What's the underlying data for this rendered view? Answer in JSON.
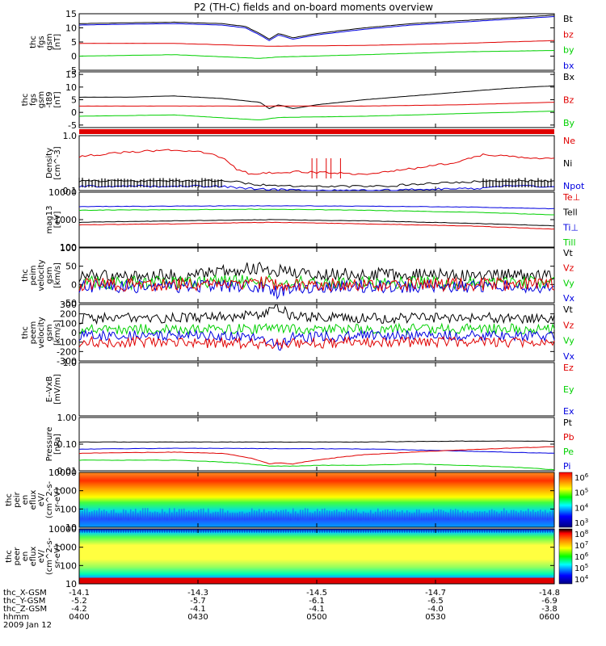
{
  "title": "P2 (TH-C) fields and on-board moments overview",
  "colors": {
    "black": "#000000",
    "red": "#e00000",
    "green": "#00d000",
    "blue": "#0000e0",
    "cyan": "#00cccc"
  },
  "chart_data": [
    {
      "type": "line",
      "ylabel": [
        "thc",
        "fgs",
        "gsm",
        "[nT]"
      ],
      "ylim": [
        -5,
        15
      ],
      "yticks": [
        {
          "v": 15,
          "t": "15"
        },
        {
          "v": 10,
          "t": "10"
        },
        {
          "v": 5,
          "t": "5"
        },
        {
          "v": 0,
          "t": "0"
        },
        {
          "v": -5,
          "t": "-5"
        }
      ],
      "legend": [
        {
          "name": "Bt",
          "color": "#000000"
        },
        {
          "name": "bz",
          "color": "#e00000"
        },
        {
          "name": "by",
          "color": "#00d000"
        },
        {
          "name": "bx",
          "color": "#0000e0"
        }
      ],
      "series": [
        {
          "name": "Bt",
          "color": "#000000",
          "x": [
            0,
            0.1,
            0.2,
            0.3,
            0.35,
            0.38,
            0.4,
            0.42,
            0.45,
            0.5,
            0.6,
            0.7,
            0.8,
            0.9,
            1
          ],
          "y": [
            11.5,
            11.8,
            12,
            11.5,
            10.5,
            8,
            6,
            8,
            6.5,
            8,
            10,
            11.5,
            12.5,
            13.5,
            14.5
          ]
        },
        {
          "name": "bx",
          "color": "#0000e0",
          "x": [
            0,
            0.1,
            0.2,
            0.3,
            0.35,
            0.38,
            0.4,
            0.42,
            0.45,
            0.5,
            0.6,
            0.7,
            0.8,
            0.9,
            1
          ],
          "y": [
            11,
            11.3,
            11.5,
            11,
            10,
            7.5,
            5.5,
            7.5,
            6,
            7.5,
            9.5,
            11,
            12,
            13,
            14
          ]
        },
        {
          "name": "bz",
          "color": "#e00000",
          "x": [
            0,
            0.2,
            0.4,
            0.6,
            0.8,
            1
          ],
          "y": [
            4.5,
            4.5,
            3.5,
            3.8,
            4.5,
            5.5
          ]
        },
        {
          "name": "by",
          "color": "#00d000",
          "x": [
            0,
            0.2,
            0.38,
            0.42,
            0.6,
            0.8,
            1
          ],
          "y": [
            0,
            0.5,
            -0.8,
            -0.3,
            0.5,
            1.5,
            2
          ]
        }
      ]
    },
    {
      "type": "line",
      "ylabel": [
        "thc",
        "fgs",
        "gsm",
        "-t89",
        "[nT]"
      ],
      "ylim": [
        -6,
        16
      ],
      "yticks": [
        {
          "v": 15,
          "t": "15"
        },
        {
          "v": 10,
          "t": "10"
        },
        {
          "v": 5,
          "t": "5"
        },
        {
          "v": 0,
          "t": "0"
        },
        {
          "v": -5,
          "t": "-5"
        }
      ],
      "legend": [
        {
          "name": "Bx",
          "color": "#000000"
        },
        {
          "name": "Bz",
          "color": "#e00000"
        },
        {
          "name": "By",
          "color": "#00d000"
        }
      ],
      "series": [
        {
          "name": "Bx",
          "color": "#000000",
          "x": [
            0,
            0.1,
            0.2,
            0.3,
            0.38,
            0.4,
            0.42,
            0.45,
            0.5,
            0.6,
            0.7,
            0.8,
            0.9,
            1
          ],
          "y": [
            6,
            6,
            6.5,
            5.5,
            4,
            1.5,
            3,
            1.5,
            3,
            5,
            6.5,
            8,
            9.5,
            10.5
          ]
        },
        {
          "name": "Bz",
          "color": "#e00000",
          "x": [
            0,
            0.2,
            0.4,
            0.6,
            0.8,
            1
          ],
          "y": [
            2.5,
            2.5,
            2.5,
            2.5,
            3,
            4
          ]
        },
        {
          "name": "By",
          "color": "#00d000",
          "x": [
            0,
            0.2,
            0.38,
            0.42,
            0.6,
            0.8,
            1
          ],
          "y": [
            -1.5,
            -1,
            -3,
            -2,
            -1.5,
            -0.5,
            0.5
          ]
        }
      ]
    },
    {
      "type": "bar",
      "label": "red separator band",
      "color": "#e00000"
    },
    {
      "type": "line",
      "scale": "log",
      "ylabel": [
        "Density",
        "[cm^-3]"
      ],
      "ylim": [
        0.1,
        1.0
      ],
      "yticks": [
        {
          "v": 1.0,
          "t": "1.0"
        },
        {
          "v": 0.1,
          "t": "0.1"
        }
      ],
      "legend": [
        {
          "name": "Ne",
          "color": "#e00000"
        },
        {
          "name": "Ni",
          "color": "#000000"
        },
        {
          "name": "Npot",
          "color": "#0000e0"
        }
      ],
      "series": [
        {
          "name": "Ne",
          "color": "#e00000",
          "x": [
            0,
            0.1,
            0.2,
            0.25,
            0.3,
            0.33,
            0.36,
            0.45,
            0.55,
            0.6,
            0.65,
            0.7,
            0.8,
            0.85,
            0.9,
            0.95,
            1
          ],
          "y": [
            0.42,
            0.5,
            0.55,
            0.52,
            0.4,
            0.25,
            0.2,
            0.22,
            0.21,
            0.2,
            0.22,
            0.25,
            0.33,
            0.45,
            0.42,
            0.4,
            0.38
          ]
        },
        {
          "name": "Ni",
          "color": "#000000",
          "x": [
            0,
            0.33,
            0.36,
            0.45,
            0.55,
            0.6,
            0.65,
            0.7,
            0.8,
            0.85,
            1
          ],
          "y": [
            0.15,
            0.15,
            0.13,
            0.12,
            0.12,
            0.12,
            0.12,
            0.13,
            0.14,
            0.15,
            0.15
          ]
        },
        {
          "name": "Npot",
          "color": "#0000e0",
          "x": [
            0,
            0.3,
            0.35,
            0.4,
            0.5,
            0.6,
            0.7,
            0.85,
            0.9,
            1
          ],
          "y": [
            0.12,
            0.12,
            0.11,
            0.105,
            0.1,
            0.1,
            0.105,
            0.11,
            0.12,
            0.12
          ]
        }
      ]
    },
    {
      "type": "line",
      "scale": "log",
      "ylabel": [
        "mag13",
        "[eV]"
      ],
      "ylim": [
        100,
        10000
      ],
      "yticks": [
        {
          "v": 10000,
          "t": "10000"
        },
        {
          "v": 1000,
          "t": "1000"
        },
        {
          "v": 100,
          "t": "100"
        }
      ],
      "legend": [
        {
          "name": "Te⊥",
          "color": "#e00000"
        },
        {
          "name": "Tell",
          "color": "#000000"
        },
        {
          "name": "Ti⊥",
          "color": "#0000e0"
        },
        {
          "name": "Till",
          "color": "#00d000"
        }
      ],
      "series": [
        {
          "name": "Ti⊥",
          "color": "#0000e0",
          "x": [
            0,
            0.2,
            0.4,
            0.6,
            0.8,
            1
          ],
          "y": [
            3000,
            3100,
            3200,
            3100,
            2900,
            2500
          ]
        },
        {
          "name": "Till",
          "color": "#00d000",
          "x": [
            0,
            0.2,
            0.4,
            0.6,
            0.8,
            1
          ],
          "y": [
            2200,
            2300,
            2400,
            2200,
            1900,
            1500
          ]
        },
        {
          "name": "Tell",
          "color": "#000000",
          "x": [
            0,
            0.2,
            0.4,
            0.6,
            0.8,
            1
          ],
          "y": [
            800,
            900,
            1000,
            900,
            750,
            600
          ]
        },
        {
          "name": "Te⊥",
          "color": "#e00000",
          "x": [
            0,
            0.2,
            0.4,
            0.6,
            0.8,
            1
          ],
          "y": [
            650,
            700,
            800,
            700,
            600,
            450
          ]
        }
      ]
    },
    {
      "type": "line",
      "ylabel": [
        "thc",
        "peim",
        "velocity",
        "gsm",
        "[km/s]"
      ],
      "ylim": [
        -50,
        100
      ],
      "yticks": [
        {
          "v": 100,
          "t": "100"
        },
        {
          "v": 50,
          "t": "50"
        },
        {
          "v": 0,
          "t": "0"
        },
        {
          "v": -50,
          "t": "-50"
        }
      ],
      "legend": [
        {
          "name": "Vt",
          "color": "#000000"
        },
        {
          "name": "Vz",
          "color": "#e00000"
        },
        {
          "name": "Vy",
          "color": "#00d000"
        },
        {
          "name": "Vx",
          "color": "#0000e0"
        }
      ],
      "series": [
        {
          "name": "Vt",
          "color": "#000000",
          "x": [
            0,
            0.2,
            0.38,
            0.45,
            0.6,
            0.8,
            1
          ],
          "y": [
            25,
            25,
            45,
            30,
            28,
            25,
            25
          ]
        },
        {
          "name": "Vy",
          "color": "#00d000",
          "x": [
            0,
            0.2,
            0.38,
            0.45,
            0.6,
            0.8,
            1
          ],
          "y": [
            5,
            5,
            10,
            5,
            5,
            5,
            5
          ]
        },
        {
          "name": "Vx",
          "color": "#0000e0",
          "x": [
            0,
            0.2,
            0.38,
            0.42,
            0.45,
            0.6,
            0.8,
            1
          ],
          "y": [
            -5,
            -5,
            -5,
            -25,
            -10,
            -5,
            -5,
            -5
          ]
        },
        {
          "name": "Vz",
          "color": "#e00000",
          "x": [
            0,
            0.2,
            0.38,
            0.45,
            0.6,
            0.8,
            1
          ],
          "y": [
            0,
            0,
            5,
            0,
            0,
            0,
            0
          ]
        }
      ]
    },
    {
      "type": "line",
      "ylabel": [
        "thc",
        "peem",
        "velocity",
        "gsm",
        "[km/s]"
      ],
      "ylim": [
        -300,
        300
      ],
      "yticks": [
        {
          "v": 300,
          "t": "300"
        },
        {
          "v": 200,
          "t": "200"
        },
        {
          "v": 100,
          "t": "100"
        },
        {
          "v": 0,
          "t": "0"
        },
        {
          "v": -100,
          "t": "-100"
        },
        {
          "v": -200,
          "t": "-200"
        },
        {
          "v": -300,
          "t": "-300"
        }
      ],
      "legend": [
        {
          "name": "Vt",
          "color": "#000000"
        },
        {
          "name": "Vz",
          "color": "#e00000"
        },
        {
          "name": "Vy",
          "color": "#00d000"
        },
        {
          "name": "Vx",
          "color": "#0000e0"
        }
      ],
      "series": [
        {
          "name": "Vt",
          "color": "#000000",
          "x": [
            0,
            0.2,
            0.38,
            0.42,
            0.45,
            0.6,
            0.8,
            1
          ],
          "y": [
            150,
            160,
            180,
            260,
            170,
            150,
            160,
            150
          ]
        },
        {
          "name": "Vy",
          "color": "#00d000",
          "x": [
            0,
            0.2,
            0.4,
            0.6,
            0.8,
            1
          ],
          "y": [
            40,
            40,
            40,
            40,
            40,
            40
          ]
        },
        {
          "name": "Vx",
          "color": "#0000e0",
          "x": [
            0,
            0.2,
            0.38,
            0.42,
            0.45,
            0.6,
            0.8,
            1
          ],
          "y": [
            -30,
            -30,
            -40,
            -160,
            -50,
            -30,
            -30,
            -30
          ]
        },
        {
          "name": "Vz",
          "color": "#e00000",
          "x": [
            0,
            0.2,
            0.4,
            0.6,
            0.8,
            1
          ],
          "y": [
            -100,
            -100,
            -120,
            -100,
            -100,
            -100
          ]
        }
      ]
    },
    {
      "type": "line",
      "ylabel": [
        "E--VxB",
        "[mV/m]"
      ],
      "ylim": [
        -1,
        1
      ],
      "yticks": [
        {
          "v": 1,
          "t": "1.0"
        }
      ],
      "legend": [
        {
          "name": "Ez",
          "color": "#e00000"
        },
        {
          "name": "Ey",
          "color": "#00d000"
        },
        {
          "name": "Ex",
          "color": "#0000e0"
        }
      ],
      "series": []
    },
    {
      "type": "line",
      "scale": "log",
      "ylabel": [
        "Pressure",
        "[nPa]"
      ],
      "ylim": [
        0.01,
        1
      ],
      "yticks": [
        {
          "v": 1,
          "t": "1.00"
        },
        {
          "v": 0.1,
          "t": "0.10"
        },
        {
          "v": 0.01,
          "t": "0.01"
        }
      ],
      "legend": [
        {
          "name": "Pt",
          "color": "#000000"
        },
        {
          "name": "Pb",
          "color": "#e00000"
        },
        {
          "name": "Pe",
          "color": "#00d000"
        },
        {
          "name": "Pi",
          "color": "#0000e0"
        }
      ],
      "series": [
        {
          "name": "Pt",
          "color": "#000000",
          "x": [
            0,
            0.2,
            0.4,
            0.6,
            0.8,
            1
          ],
          "y": [
            0.12,
            0.12,
            0.12,
            0.12,
            0.13,
            0.13
          ]
        },
        {
          "name": "Pi",
          "color": "#0000e0",
          "x": [
            0,
            0.2,
            0.4,
            0.6,
            0.8,
            1
          ],
          "y": [
            0.065,
            0.07,
            0.068,
            0.066,
            0.055,
            0.045
          ]
        },
        {
          "name": "Pb",
          "color": "#e00000",
          "x": [
            0,
            0.1,
            0.2,
            0.3,
            0.36,
            0.4,
            0.42,
            0.45,
            0.5,
            0.6,
            0.7,
            0.8,
            0.9,
            1
          ],
          "y": [
            0.045,
            0.048,
            0.05,
            0.045,
            0.03,
            0.018,
            0.02,
            0.018,
            0.025,
            0.04,
            0.05,
            0.06,
            0.07,
            0.08
          ]
        },
        {
          "name": "Pe",
          "color": "#00d000",
          "x": [
            0,
            0.2,
            0.33,
            0.4,
            0.45,
            0.5,
            0.6,
            0.7,
            0.8,
            0.9,
            1
          ],
          "y": [
            0.025,
            0.025,
            0.02,
            0.015,
            0.015,
            0.016,
            0.016,
            0.018,
            0.016,
            0.014,
            0.011
          ]
        }
      ]
    },
    {
      "type": "heatmap",
      "scale": "log",
      "ylabel": [
        "thc",
        "peir",
        "en",
        "eflux",
        "eV/",
        "(cm^2-s-",
        "sr-eV)"
      ],
      "ylim": [
        10,
        10000
      ],
      "yticks": [
        {
          "v": 10000,
          "t": "10000"
        },
        {
          "v": 1000,
          "t": "1000"
        },
        {
          "v": 100,
          "t": "100"
        },
        {
          "v": 10,
          "t": "10"
        }
      ],
      "colorbar": {
        "ticks": [
          "10^6",
          "10^5",
          "10^4",
          "10^3"
        ]
      }
    },
    {
      "type": "heatmap",
      "scale": "log",
      "ylabel": [
        "thc",
        "peer",
        "en",
        "eflux",
        "eV/",
        "(cm^2-s-",
        "sr-eV)"
      ],
      "ylim": [
        10,
        10000
      ],
      "yticks": [
        {
          "v": 10000,
          "t": "10000"
        },
        {
          "v": 1000,
          "t": "1000"
        },
        {
          "v": 100,
          "t": "100"
        },
        {
          "v": 10,
          "t": "10"
        }
      ],
      "colorbar": {
        "ticks": [
          "10^8",
          "10^7",
          "10^6",
          "10^5",
          "10^4"
        ]
      }
    }
  ],
  "xaxis": {
    "rows": [
      {
        "label": "thc_X-GSM",
        "values": [
          "-14.1",
          "-14.3",
          "-14.5",
          "-14.7",
          "-14.8"
        ]
      },
      {
        "label": "thc_Y-GSM",
        "values": [
          "-5.2",
          "-5.7",
          "-6.1",
          "-6.5",
          "-6.9"
        ]
      },
      {
        "label": "thc_Z-GSM",
        "values": [
          "-4.2",
          "-4.1",
          "-4.1",
          "-4.0",
          "-3.8"
        ]
      },
      {
        "label": "hhmm",
        "values": [
          "0400",
          "0430",
          "0500",
          "0530",
          "0600"
        ]
      }
    ],
    "date": "2009 Jan 12"
  }
}
